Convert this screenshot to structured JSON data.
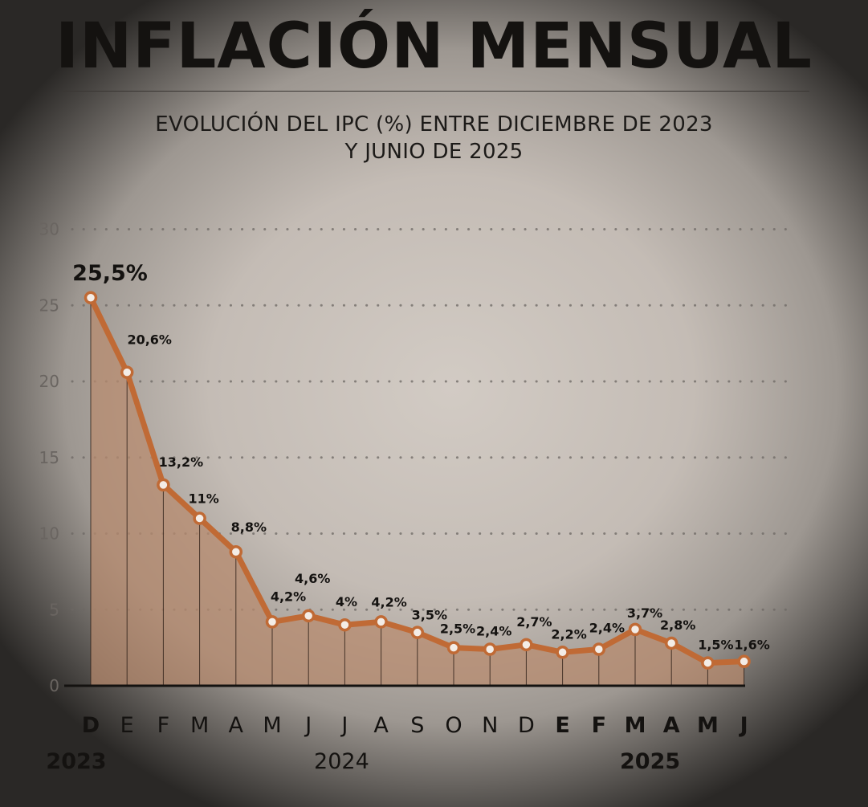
{
  "header": {
    "title": "INFLACIÓN MENSUAL",
    "subtitle_line1": "EVOLUCIÓN DEL IPC (%) ENTRE DICIEMBRE DE 2023",
    "subtitle_line2": "Y JUNIO DE 2025"
  },
  "colors": {
    "line": "#c06a35",
    "area": "#b98a6e",
    "text": "#141210",
    "grid": "#6d6864"
  },
  "chart_data": {
    "type": "line",
    "title": "INFLACIÓN MENSUAL",
    "subtitle": "EVOLUCIÓN DEL IPC (%) ENTRE DICIEMBRE DE 2023 Y JUNIO DE 2025",
    "xlabel": "",
    "ylabel": "",
    "ylim": [
      0,
      30
    ],
    "yticks": [
      0,
      5,
      10,
      15,
      20,
      25,
      30
    ],
    "ytick_labels": [
      "0",
      "5",
      "10",
      "15",
      "20",
      "25",
      "30"
    ],
    "grid": true,
    "categories": [
      "D",
      "E",
      "F",
      "M",
      "A",
      "M",
      "J",
      "J",
      "A",
      "S",
      "O",
      "N",
      "D",
      "E",
      "F",
      "M",
      "A",
      "M",
      "J"
    ],
    "categories_bold": [
      true,
      false,
      false,
      false,
      false,
      false,
      false,
      false,
      false,
      false,
      false,
      false,
      false,
      true,
      true,
      true,
      true,
      true,
      true
    ],
    "year_labels": [
      {
        "label": "2023",
        "index": 0,
        "bold": true
      },
      {
        "label": "2024",
        "index": 7,
        "bold": false
      },
      {
        "label": "2025",
        "index": 15.5,
        "bold": true
      }
    ],
    "series": [
      {
        "values": [
          25.5,
          20.6,
          13.2,
          11,
          8.8,
          4.2,
          4.6,
          4,
          4.2,
          3.5,
          2.5,
          2.4,
          2.7,
          2.2,
          2.4,
          3.7,
          2.8,
          1.5,
          1.6
        ],
        "data_labels": [
          "25,5%",
          "20,6%",
          "13,2%",
          "11%",
          "8,8%",
          "4,2%",
          "4,6%",
          "4%",
          "4,2%",
          "3,5%",
          "2,5%",
          "2,4%",
          "2,7%",
          "2,2%",
          "2,4%",
          "3,7%",
          "2,8%",
          "1,5%",
          "1,6%"
        ]
      }
    ]
  }
}
